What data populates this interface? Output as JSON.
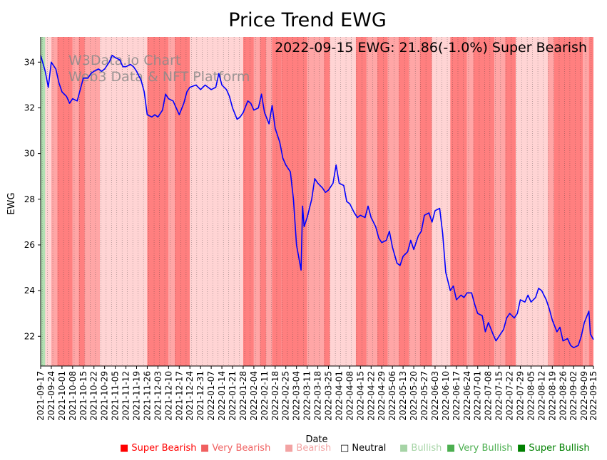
{
  "chart_data": {
    "type": "line",
    "title": "Price Trend EWG",
    "xlabel": "Date",
    "ylabel": "EWG",
    "ylim": [
      20.7,
      35.1
    ],
    "yticks": [
      22,
      24,
      26,
      28,
      30,
      32,
      34
    ],
    "annotation": "2022-09-15 EWG: 21.86(-1.0%) Super Bearish",
    "watermark": [
      "W3Data.io Chart",
      "Web3 Data & NFT Platform"
    ],
    "date_start": "2021-09-17",
    "date_end": "2022-09-15",
    "xtick_labels": [
      "2021-09-17",
      "2021-09-24",
      "2021-10-01",
      "2021-10-08",
      "2021-10-15",
      "2021-10-22",
      "2021-10-29",
      "2021-11-05",
      "2021-11-12",
      "2021-11-19",
      "2021-11-26",
      "2021-12-03",
      "2021-12-10",
      "2021-12-17",
      "2021-12-24",
      "2021-12-31",
      "2022-01-07",
      "2022-01-14",
      "2022-01-21",
      "2022-01-28",
      "2022-02-04",
      "2022-02-11",
      "2022-02-18",
      "2022-02-25",
      "2022-03-04",
      "2022-03-11",
      "2022-03-18",
      "2022-03-25",
      "2022-04-01",
      "2022-04-08",
      "2022-04-15",
      "2022-04-22",
      "2022-04-29",
      "2022-05-06",
      "2022-05-13",
      "2022-05-20",
      "2022-05-27",
      "2022-06-03",
      "2022-06-10",
      "2022-06-17",
      "2022-06-24",
      "2022-07-01",
      "2022-07-08",
      "2022-07-15",
      "2022-07-22",
      "2022-07-29",
      "2022-08-05",
      "2022-08-12",
      "2022-08-19",
      "2022-08-26",
      "2022-09-02",
      "2022-09-09",
      "2022-09-15"
    ],
    "series": [
      {
        "name": "EWG",
        "color": "#0000ff",
        "points": [
          [
            "2021-09-17",
            34.3
          ],
          [
            "2021-09-20",
            33.6
          ],
          [
            "2021-09-22",
            32.9
          ],
          [
            "2021-09-24",
            34.0
          ],
          [
            "2021-09-27",
            33.7
          ],
          [
            "2021-09-29",
            33.1
          ],
          [
            "2021-10-01",
            32.7
          ],
          [
            "2021-10-04",
            32.5
          ],
          [
            "2021-10-06",
            32.2
          ],
          [
            "2021-10-08",
            32.4
          ],
          [
            "2021-10-11",
            32.3
          ],
          [
            "2021-10-13",
            32.8
          ],
          [
            "2021-10-15",
            33.3
          ],
          [
            "2021-10-18",
            33.3
          ],
          [
            "2021-10-20",
            33.5
          ],
          [
            "2021-10-22",
            33.6
          ],
          [
            "2021-10-25",
            33.7
          ],
          [
            "2021-10-27",
            33.6
          ],
          [
            "2021-10-29",
            33.7
          ],
          [
            "2021-11-01",
            34.0
          ],
          [
            "2021-11-03",
            34.3
          ],
          [
            "2021-11-05",
            34.2
          ],
          [
            "2021-11-08",
            34.1
          ],
          [
            "2021-11-10",
            33.8
          ],
          [
            "2021-11-12",
            33.8
          ],
          [
            "2021-11-15",
            33.9
          ],
          [
            "2021-11-17",
            33.8
          ],
          [
            "2021-11-19",
            33.6
          ],
          [
            "2021-11-22",
            33.2
          ],
          [
            "2021-11-24",
            32.7
          ],
          [
            "2021-11-26",
            31.7
          ],
          [
            "2021-11-29",
            31.6
          ],
          [
            "2021-12-01",
            31.7
          ],
          [
            "2021-12-03",
            31.6
          ],
          [
            "2021-12-06",
            31.9
          ],
          [
            "2021-12-08",
            32.6
          ],
          [
            "2021-12-10",
            32.4
          ],
          [
            "2021-12-13",
            32.3
          ],
          [
            "2021-12-15",
            32.0
          ],
          [
            "2021-12-17",
            31.7
          ],
          [
            "2021-12-20",
            32.2
          ],
          [
            "2021-12-22",
            32.7
          ],
          [
            "2021-12-24",
            32.9
          ],
          [
            "2021-12-28",
            33.0
          ],
          [
            "2021-12-31",
            32.8
          ],
          [
            "2022-01-03",
            33.0
          ],
          [
            "2022-01-05",
            32.9
          ],
          [
            "2022-01-07",
            32.8
          ],
          [
            "2022-01-10",
            32.9
          ],
          [
            "2022-01-12",
            33.5
          ],
          [
            "2022-01-14",
            33.0
          ],
          [
            "2022-01-17",
            32.8
          ],
          [
            "2022-01-19",
            32.5
          ],
          [
            "2022-01-21",
            32.0
          ],
          [
            "2022-01-24",
            31.5
          ],
          [
            "2022-01-26",
            31.6
          ],
          [
            "2022-01-28",
            31.8
          ],
          [
            "2022-01-31",
            32.3
          ],
          [
            "2022-02-02",
            32.2
          ],
          [
            "2022-02-04",
            31.9
          ],
          [
            "2022-02-07",
            32.0
          ],
          [
            "2022-02-09",
            32.6
          ],
          [
            "2022-02-11",
            31.8
          ],
          [
            "2022-02-14",
            31.3
          ],
          [
            "2022-02-16",
            32.1
          ],
          [
            "2022-02-18",
            31.1
          ],
          [
            "2022-02-21",
            30.5
          ],
          [
            "2022-02-23",
            29.8
          ],
          [
            "2022-02-25",
            29.5
          ],
          [
            "2022-02-28",
            29.2
          ],
          [
            "2022-03-02",
            28.0
          ],
          [
            "2022-03-04",
            26.0
          ],
          [
            "2022-03-07",
            24.9
          ],
          [
            "2022-03-08",
            27.7
          ],
          [
            "2022-03-09",
            26.8
          ],
          [
            "2022-03-11",
            27.2
          ],
          [
            "2022-03-14",
            28.0
          ],
          [
            "2022-03-16",
            28.9
          ],
          [
            "2022-03-18",
            28.7
          ],
          [
            "2022-03-21",
            28.5
          ],
          [
            "2022-03-23",
            28.3
          ],
          [
            "2022-03-25",
            28.4
          ],
          [
            "2022-03-28",
            28.7
          ],
          [
            "2022-03-30",
            29.5
          ],
          [
            "2022-04-01",
            28.7
          ],
          [
            "2022-04-04",
            28.6
          ],
          [
            "2022-04-06",
            27.9
          ],
          [
            "2022-04-08",
            27.8
          ],
          [
            "2022-04-11",
            27.4
          ],
          [
            "2022-04-13",
            27.2
          ],
          [
            "2022-04-15",
            27.3
          ],
          [
            "2022-04-18",
            27.2
          ],
          [
            "2022-04-20",
            27.7
          ],
          [
            "2022-04-22",
            27.2
          ],
          [
            "2022-04-25",
            26.8
          ],
          [
            "2022-04-27",
            26.3
          ],
          [
            "2022-04-29",
            26.1
          ],
          [
            "2022-05-02",
            26.2
          ],
          [
            "2022-05-04",
            26.6
          ],
          [
            "2022-05-06",
            25.9
          ],
          [
            "2022-05-09",
            25.2
          ],
          [
            "2022-05-11",
            25.1
          ],
          [
            "2022-05-13",
            25.5
          ],
          [
            "2022-05-16",
            25.7
          ],
          [
            "2022-05-18",
            26.2
          ],
          [
            "2022-05-20",
            25.8
          ],
          [
            "2022-05-23",
            26.4
          ],
          [
            "2022-05-25",
            26.6
          ],
          [
            "2022-05-27",
            27.3
          ],
          [
            "2022-05-30",
            27.4
          ],
          [
            "2022-06-01",
            27.0
          ],
          [
            "2022-06-03",
            27.5
          ],
          [
            "2022-06-06",
            27.6
          ],
          [
            "2022-06-08",
            26.5
          ],
          [
            "2022-06-10",
            24.8
          ],
          [
            "2022-06-13",
            24.0
          ],
          [
            "2022-06-15",
            24.2
          ],
          [
            "2022-06-17",
            23.6
          ],
          [
            "2022-06-20",
            23.8
          ],
          [
            "2022-06-22",
            23.7
          ],
          [
            "2022-06-24",
            23.9
          ],
          [
            "2022-06-27",
            23.9
          ],
          [
            "2022-06-29",
            23.4
          ],
          [
            "2022-07-01",
            23.0
          ],
          [
            "2022-07-04",
            22.9
          ],
          [
            "2022-07-06",
            22.2
          ],
          [
            "2022-07-08",
            22.6
          ],
          [
            "2022-07-11",
            22.1
          ],
          [
            "2022-07-13",
            21.8
          ],
          [
            "2022-07-15",
            22.0
          ],
          [
            "2022-07-18",
            22.3
          ],
          [
            "2022-07-20",
            22.8
          ],
          [
            "2022-07-22",
            23.0
          ],
          [
            "2022-07-25",
            22.8
          ],
          [
            "2022-07-27",
            23.0
          ],
          [
            "2022-07-29",
            23.6
          ],
          [
            "2022-08-01",
            23.5
          ],
          [
            "2022-08-03",
            23.8
          ],
          [
            "2022-08-05",
            23.5
          ],
          [
            "2022-08-08",
            23.7
          ],
          [
            "2022-08-10",
            24.1
          ],
          [
            "2022-08-12",
            24.0
          ],
          [
            "2022-08-15",
            23.6
          ],
          [
            "2022-08-17",
            23.2
          ],
          [
            "2022-08-19",
            22.7
          ],
          [
            "2022-08-22",
            22.2
          ],
          [
            "2022-08-24",
            22.4
          ],
          [
            "2022-08-26",
            21.8
          ],
          [
            "2022-08-29",
            21.9
          ],
          [
            "2022-08-31",
            21.6
          ],
          [
            "2022-09-02",
            21.5
          ],
          [
            "2022-09-05",
            21.6
          ],
          [
            "2022-09-07",
            22.0
          ],
          [
            "2022-09-09",
            22.6
          ],
          [
            "2022-09-12",
            23.1
          ],
          [
            "2022-09-13",
            22.1
          ],
          [
            "2022-09-15",
            21.86
          ]
        ]
      }
    ],
    "sentiment_colors": {
      "super_bearish": "#ff7f7f",
      "very_bearish": "#ffa6a6",
      "bearish": "#ffd4d4",
      "neutral": "#ffffff",
      "bullish": "#c9e6c9",
      "very_bullish": "#b2e0b2",
      "super_bullish": "#8fd18f"
    },
    "sentiment_bands": [
      {
        "start": "2021-09-17",
        "end": "2021-09-20",
        "level": "very_bullish"
      },
      {
        "start": "2021-09-20",
        "end": "2021-09-24",
        "level": "bearish"
      },
      {
        "start": "2021-09-24",
        "end": "2021-09-28",
        "level": "very_bearish"
      },
      {
        "start": "2021-09-28",
        "end": "2021-10-08",
        "level": "super_bearish"
      },
      {
        "start": "2021-10-08",
        "end": "2021-10-12",
        "level": "very_bearish"
      },
      {
        "start": "2021-10-12",
        "end": "2021-10-16",
        "level": "super_bearish"
      },
      {
        "start": "2021-10-16",
        "end": "2021-10-26",
        "level": "very_bearish"
      },
      {
        "start": "2021-10-26",
        "end": "2021-11-26",
        "level": "bearish"
      },
      {
        "start": "2021-11-26",
        "end": "2021-12-10",
        "level": "super_bearish"
      },
      {
        "start": "2021-12-10",
        "end": "2021-12-14",
        "level": "very_bearish"
      },
      {
        "start": "2021-12-14",
        "end": "2021-12-24",
        "level": "super_bearish"
      },
      {
        "start": "2021-12-24",
        "end": "2022-01-28",
        "level": "bearish"
      },
      {
        "start": "2022-01-28",
        "end": "2022-02-04",
        "level": "super_bearish"
      },
      {
        "start": "2022-02-04",
        "end": "2022-02-08",
        "level": "very_bearish"
      },
      {
        "start": "2022-02-08",
        "end": "2022-02-12",
        "level": "super_bearish"
      },
      {
        "start": "2022-02-12",
        "end": "2022-02-16",
        "level": "very_bearish"
      },
      {
        "start": "2022-02-16",
        "end": "2022-02-22",
        "level": "super_bearish"
      },
      {
        "start": "2022-02-22",
        "end": "2022-03-11",
        "level": "super_bearish"
      },
      {
        "start": "2022-03-11",
        "end": "2022-03-22",
        "level": "very_bearish"
      },
      {
        "start": "2022-03-22",
        "end": "2022-03-26",
        "level": "super_bearish"
      },
      {
        "start": "2022-03-26",
        "end": "2022-04-12",
        "level": "bearish"
      },
      {
        "start": "2022-04-12",
        "end": "2022-04-19",
        "level": "super_bearish"
      },
      {
        "start": "2022-04-19",
        "end": "2022-04-26",
        "level": "very_bearish"
      },
      {
        "start": "2022-04-26",
        "end": "2022-05-03",
        "level": "super_bearish"
      },
      {
        "start": "2022-05-03",
        "end": "2022-05-10",
        "level": "very_bearish"
      },
      {
        "start": "2022-05-10",
        "end": "2022-05-17",
        "level": "super_bearish"
      },
      {
        "start": "2022-05-17",
        "end": "2022-05-24",
        "level": "very_bearish"
      },
      {
        "start": "2022-05-24",
        "end": "2022-06-01",
        "level": "super_bearish"
      },
      {
        "start": "2022-06-01",
        "end": "2022-06-13",
        "level": "bearish"
      },
      {
        "start": "2022-06-13",
        "end": "2022-06-24",
        "level": "super_bearish"
      },
      {
        "start": "2022-06-24",
        "end": "2022-06-28",
        "level": "very_bearish"
      },
      {
        "start": "2022-06-28",
        "end": "2022-07-12",
        "level": "super_bearish"
      },
      {
        "start": "2022-07-12",
        "end": "2022-07-19",
        "level": "very_bearish"
      },
      {
        "start": "2022-07-19",
        "end": "2022-07-26",
        "level": "super_bearish"
      },
      {
        "start": "2022-07-26",
        "end": "2022-08-16",
        "level": "bearish"
      },
      {
        "start": "2022-08-16",
        "end": "2022-08-20",
        "level": "very_bearish"
      },
      {
        "start": "2022-08-20",
        "end": "2022-09-08",
        "level": "super_bearish"
      },
      {
        "start": "2022-09-08",
        "end": "2022-09-12",
        "level": "very_bearish"
      },
      {
        "start": "2022-09-12",
        "end": "2022-09-15",
        "level": "super_bearish"
      }
    ],
    "legend": [
      {
        "symbol": "■",
        "label": "Super Bearish",
        "color": "#ff0000"
      },
      {
        "symbol": "■",
        "label": "Very Bearish",
        "color": "#f06060"
      },
      {
        "symbol": "■",
        "label": "Bearish",
        "color": "#f3a3a3"
      },
      {
        "symbol": "□",
        "label": "Neutral",
        "color": "#000000"
      },
      {
        "symbol": "■",
        "label": "Bullish",
        "color": "#a6d4a6"
      },
      {
        "symbol": "■",
        "label": "Very Bullish",
        "color": "#4caf50"
      },
      {
        "symbol": "■",
        "label": "Super Bullish",
        "color": "#008000"
      }
    ]
  }
}
